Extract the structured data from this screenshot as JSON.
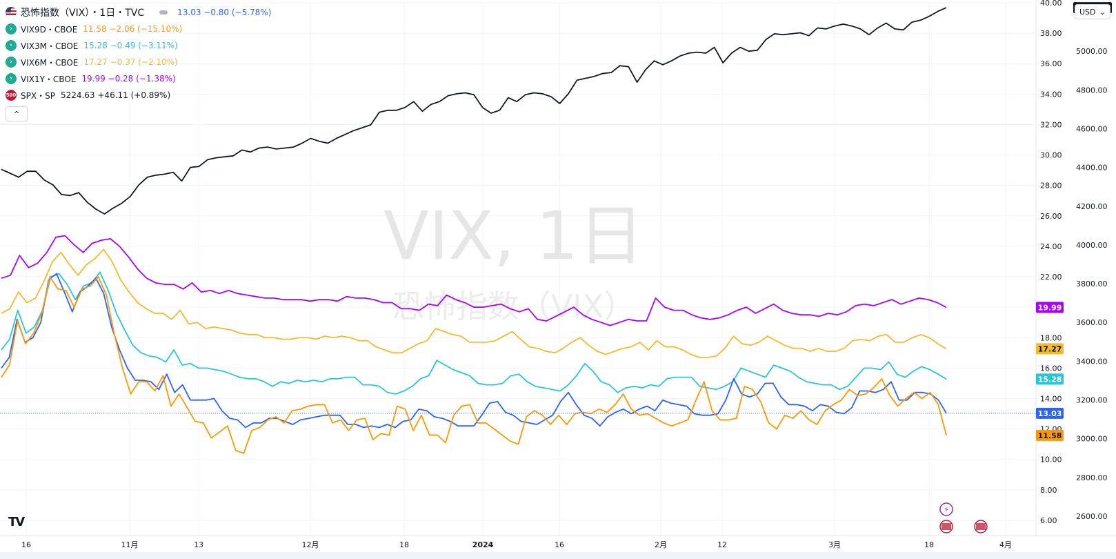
{
  "header": {
    "main_symbol_name": "恐怖指数（VIX）・1日・TVC",
    "main_quote": "13.03 −0.80 (−5.78%)",
    "main_color": "#2962ff"
  },
  "legend": [
    {
      "symbol": "VIX9D・CBOE",
      "quote": "11.58 −2.06 (−15.10%)",
      "color": "#ff9800",
      "icon": "arrow-icon"
    },
    {
      "symbol": "VIX3M・CBOE",
      "quote": "15.28 −0.49 (−3.11%)",
      "color": "#26c6da",
      "icon": "arrow-icon"
    },
    {
      "symbol": "VIX6M・CBOE",
      "quote": "17.27 −0.37 (−2.10%)",
      "color": "#f7b928",
      "icon": "arrow-icon"
    },
    {
      "symbol": "VIX1Y・CBOE",
      "quote": "19.99 −0.28 (−1.38%)",
      "color": "#aa00ff",
      "icon": "arrow-icon"
    },
    {
      "symbol": "SPX・SP",
      "quote": "5224.63 +46.11 (+0.89%)",
      "color": "#131722",
      "icon": "spx-icon",
      "icon_text": "500"
    }
  ],
  "collapse_label": "^",
  "currency": {
    "label": "USD",
    "chevron": "⌄"
  },
  "watermark": {
    "line1": "VIX, 1日",
    "line2": "恐怖指数（VIX）"
  },
  "logo_text": "TV",
  "chart_data": {
    "type": "line",
    "x_tick_labels": [
      "16",
      "11月",
      "13",
      "12月",
      "18",
      "2024",
      "16",
      "2月",
      "12",
      "3月",
      "18",
      "4月"
    ],
    "left_axis": {
      "ticks": [
        "40.00",
        "38.00",
        "36.00",
        "34.00",
        "32.00",
        "30.00",
        "28.00",
        "26.00",
        "24.00",
        "22.00",
        "20.00",
        "18.00",
        "16.00",
        "14.00",
        "12.00",
        "10.00",
        "8.00",
        "6.00"
      ],
      "ylim": [
        5,
        40
      ]
    },
    "right_axis": {
      "ticks": [
        "5000.00",
        "4800.00",
        "4600.00",
        "4400.00",
        "4200.00",
        "4000.00",
        "3800.00",
        "3600.00",
        "3400.00",
        "3200.00",
        "3000.00",
        "2800.00",
        "2600.00"
      ],
      "ylim": [
        2500,
        5250
      ]
    },
    "series": [
      {
        "name": "VIX1Y",
        "color": "#aa00ff",
        "axis": "left",
        "last_label": "19.99",
        "values": [
          21.9,
          22.1,
          23.4,
          22.6,
          22.9,
          23.6,
          24.6,
          24.7,
          24.1,
          23.6,
          24.2,
          24.4,
          24.5,
          24.0,
          23.3,
          22.5,
          21.9,
          21.6,
          21.5,
          21.5,
          21.2,
          21.6,
          21.0,
          21.1,
          20.9,
          21.1,
          20.9,
          20.8,
          20.7,
          20.6,
          20.6,
          20.5,
          20.5,
          20.5,
          20.4,
          20.5,
          20.5,
          20.4,
          20.7,
          20.6,
          20.6,
          20.5,
          20.3,
          20.3,
          19.9,
          19.9,
          19.8,
          20.2,
          20.1,
          20.8,
          20.5,
          20.3,
          20.0,
          20.0,
          20.1,
          20.2,
          19.9,
          19.7,
          19.9,
          19.2,
          19.1,
          19.4,
          19.7,
          20.0,
          19.5,
          19.2,
          19.0,
          18.8,
          19.0,
          19.2,
          19.1,
          19.1,
          20.6,
          20.0,
          19.8,
          19.8,
          19.5,
          19.3,
          19.2,
          19.3,
          19.5,
          19.8,
          20.0,
          19.6,
          19.9,
          20.2,
          19.8,
          19.6,
          19.5,
          19.5,
          19.4,
          19.6,
          19.5,
          19.7,
          20.1,
          20.2,
          20.1,
          20.3,
          20.5,
          20.2,
          20.4,
          20.6,
          20.5,
          20.3,
          19.99
        ]
      },
      {
        "name": "VIX6M",
        "color": "#f7b928",
        "axis": "left",
        "last_label": "17.27",
        "values": [
          19.6,
          19.9,
          21.0,
          20.3,
          20.6,
          21.7,
          23.0,
          23.6,
          22.8,
          22.1,
          22.8,
          23.2,
          23.8,
          23.0,
          21.8,
          21.0,
          20.3,
          19.9,
          19.6,
          19.6,
          19.2,
          19.8,
          18.9,
          19.0,
          18.6,
          18.7,
          18.6,
          18.5,
          18.3,
          18.2,
          18.2,
          18.0,
          18.0,
          17.9,
          17.9,
          18.0,
          18.0,
          17.9,
          18.1,
          18.0,
          18.1,
          18.0,
          17.8,
          17.8,
          17.4,
          17.2,
          17.0,
          17.0,
          17.3,
          17.6,
          17.8,
          18.6,
          18.4,
          18.2,
          18.1,
          17.7,
          17.7,
          17.7,
          17.8,
          18.1,
          18.4,
          17.9,
          17.4,
          17.3,
          17.1,
          17.0,
          17.3,
          17.7,
          18.0,
          17.5,
          17.1,
          16.9,
          17.1,
          17.3,
          17.4,
          17.7,
          17.2,
          17.8,
          17.4,
          17.4,
          17.2,
          16.9,
          16.7,
          16.7,
          16.8,
          17.3,
          18.1,
          17.6,
          17.5,
          17.7,
          18.1,
          17.8,
          17.5,
          17.3,
          17.3,
          17.1,
          17.3,
          17.1,
          17.1,
          17.3,
          17.8,
          17.9,
          17.8,
          18.1,
          18.2,
          17.7,
          17.7,
          18.0,
          18.2,
          18.0,
          17.6,
          17.27
        ]
      },
      {
        "name": "VIX3M",
        "color": "#26c6da",
        "axis": "left",
        "last_label": "15.28",
        "values": [
          17.2,
          17.9,
          19.8,
          18.3,
          18.7,
          19.8,
          22.0,
          22.2,
          21.5,
          20.5,
          21.4,
          21.6,
          22.3,
          21.1,
          19.6,
          18.5,
          17.5,
          17.0,
          16.8,
          16.7,
          16.4,
          17.2,
          16.2,
          16.3,
          16.0,
          16.0,
          15.9,
          15.8,
          15.6,
          15.4,
          15.3,
          15.3,
          15.1,
          14.8,
          15.1,
          15.0,
          15.2,
          15.1,
          15.2,
          15.1,
          15.3,
          15.3,
          15.4,
          15.4,
          14.9,
          14.9,
          14.8,
          14.4,
          14.3,
          14.5,
          14.8,
          15.3,
          15.5,
          16.5,
          16.2,
          15.9,
          15.7,
          15.5,
          15.0,
          14.9,
          14.9,
          15.0,
          15.5,
          15.6,
          15.1,
          14.8,
          14.7,
          14.6,
          14.5,
          14.9,
          15.5,
          16.3,
          15.8,
          15.1,
          14.9,
          14.4,
          14.7,
          14.8,
          14.7,
          14.9,
          14.8,
          15.3,
          15.4,
          15.4,
          15.4,
          14.8,
          14.7,
          14.6,
          14.8,
          15.1,
          16.0,
          15.8,
          15.6,
          15.4,
          16.2,
          16.0,
          15.8,
          15.4,
          15.1,
          15.0,
          14.9,
          14.9,
          14.6,
          14.8,
          15.4,
          16.0,
          16.0,
          15.9,
          16.4,
          15.6,
          15.4,
          15.8,
          16.1,
          15.9,
          15.6,
          15.28
        ]
      },
      {
        "name": "VIX",
        "color": "#2962ff",
        "axis": "left",
        "last_label": "13.03",
        "values": [
          16.0,
          16.7,
          19.2,
          17.7,
          18.0,
          19.0,
          21.8,
          22.2,
          21.0,
          19.7,
          21.0,
          21.4,
          21.9,
          20.9,
          18.7,
          17.2,
          16.0,
          15.2,
          15.2,
          15.1,
          14.6,
          15.6,
          14.4,
          14.9,
          13.9,
          13.9,
          13.9,
          14.0,
          13.2,
          12.7,
          12.6,
          12.1,
          12.4,
          12.4,
          12.7,
          12.7,
          12.5,
          12.3,
          12.6,
          12.7,
          12.8,
          12.9,
          12.9,
          12.9,
          12.3,
          12.3,
          12.1,
          12.2,
          12.1,
          12.3,
          12.1,
          12.5,
          12.6,
          13.3,
          13.2,
          12.8,
          12.7,
          12.5,
          12.2,
          12.2,
          12.2,
          12.9,
          13.7,
          13.8,
          13.1,
          12.9,
          12.5,
          12.4,
          12.3,
          12.6,
          12.9,
          13.8,
          14.4,
          13.6,
          12.9,
          12.7,
          12.2,
          12.8,
          13.1,
          13.3,
          13.0,
          13.3,
          13.5,
          13.2,
          13.9,
          13.7,
          13.6,
          13.5,
          13.0,
          12.9,
          12.9,
          13.0,
          13.9,
          15.3,
          14.3,
          14.1,
          14.3,
          15.0,
          15.0,
          14.1,
          13.6,
          13.6,
          13.5,
          13.2,
          13.6,
          13.5,
          13.1,
          13.0,
          13.4,
          14.5,
          14.5,
          14.4,
          14.6,
          15.1,
          13.9,
          13.9,
          14.4,
          14.4,
          14.3,
          13.9,
          13.03
        ]
      },
      {
        "name": "VIX9D",
        "color": "#ff9800",
        "axis": "left",
        "last_label": "11.58",
        "values": [
          15.4,
          16.2,
          19.1,
          17.6,
          18.3,
          19.6,
          22.0,
          21.2,
          21.1,
          20.0,
          21.2,
          21.4,
          22.0,
          20.8,
          18.2,
          16.0,
          14.3,
          15.1,
          15.1,
          14.5,
          15.5,
          13.5,
          14.3,
          13.4,
          12.5,
          12.4,
          11.4,
          11.8,
          12.2,
          10.6,
          10.4,
          11.9,
          12.1,
          12.6,
          12.8,
          12.4,
          13.2,
          13.3,
          13.5,
          13.6,
          13.6,
          12.4,
          12.6,
          11.9,
          12.6,
          12.7,
          11.3,
          11.7,
          11.6,
          13.5,
          13.3,
          11.9,
          12.9,
          11.6,
          11.6,
          11.1,
          12.9,
          13.5,
          13.6,
          12.4,
          12.4,
          12.0,
          11.6,
          11.2,
          11.0,
          12.8,
          13.2,
          12.9,
          12.3,
          12.9,
          12.3,
          13.0,
          13.1,
          13.0,
          13.3,
          13.1,
          13.6,
          14.3,
          13.3,
          12.9,
          13.0,
          12.7,
          12.4,
          12.2,
          12.4,
          12.6,
          13.9,
          15.1,
          13.2,
          12.6,
          12.6,
          12.7,
          14.8,
          14.6,
          13.8,
          12.4,
          12.0,
          12.9,
          12.7,
          13.2,
          12.6,
          12.3,
          13.2,
          13.6,
          13.9,
          14.6,
          14.2,
          14.3,
          14.7,
          15.3,
          14.2,
          13.5,
          14.0,
          14.4,
          14.0,
          14.4,
          13.6,
          11.58
        ]
      },
      {
        "name": "SPX",
        "color": "#131722",
        "axis": "right",
        "last_label": "5224.63",
        "values": [
          4390,
          4370,
          4350,
          4380,
          4380,
          4335,
          4310,
          4260,
          4255,
          4270,
          4220,
          4185,
          4160,
          4190,
          4215,
          4250,
          4310,
          4350,
          4360,
          4365,
          4375,
          4330,
          4400,
          4405,
          4440,
          4450,
          4455,
          4460,
          4490,
          4480,
          4500,
          4505,
          4495,
          4500,
          4505,
          4525,
          4550,
          4535,
          4525,
          4550,
          4570,
          4590,
          4605,
          4620,
          4685,
          4695,
          4695,
          4710,
          4740,
          4690,
          4725,
          4740,
          4770,
          4780,
          4785,
          4775,
          4710,
          4680,
          4695,
          4760,
          4740,
          4775,
          4785,
          4780,
          4765,
          4730,
          4780,
          4850,
          4860,
          4870,
          4885,
          4890,
          4925,
          4920,
          4840,
          4905,
          4950,
          4930,
          4950,
          4975,
          4990,
          4995,
          4990,
          5020,
          4940,
          4990,
          5020,
          5000,
          5005,
          5060,
          5090,
          5085,
          5090,
          5095,
          5080,
          5120,
          5115,
          5130,
          5140,
          5130,
          5115,
          5085,
          5120,
          5145,
          5115,
          5110,
          5150,
          5160,
          5180,
          5205,
          5224.63
        ]
      }
    ]
  }
}
